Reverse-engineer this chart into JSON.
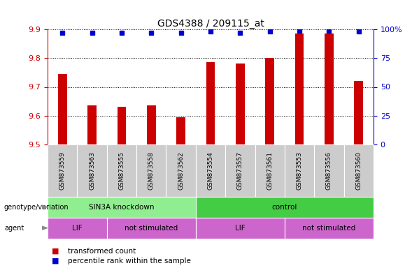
{
  "title": "GDS4388 / 209115_at",
  "samples": [
    "GSM873559",
    "GSM873563",
    "GSM873555",
    "GSM873558",
    "GSM873562",
    "GSM873554",
    "GSM873557",
    "GSM873561",
    "GSM873553",
    "GSM873556",
    "GSM873560"
  ],
  "bar_values": [
    9.745,
    9.635,
    9.63,
    9.635,
    9.595,
    9.785,
    9.78,
    9.8,
    9.885,
    9.885,
    9.72
  ],
  "percentile_values": [
    97,
    97,
    97,
    97,
    97,
    98,
    97,
    98,
    99,
    99,
    98
  ],
  "ylim": [
    9.5,
    9.9
  ],
  "y_ticks": [
    9.5,
    9.6,
    9.7,
    9.8,
    9.9
  ],
  "right_y_ticks": [
    0,
    25,
    50,
    75,
    100
  ],
  "right_y_tick_labels": [
    "0",
    "25",
    "50",
    "75",
    "100%"
  ],
  "bar_color": "#cc0000",
  "dot_color": "#0000cc",
  "bar_bottom": 9.5,
  "genotype_groups": [
    {
      "label": "SIN3A knockdown",
      "start": 0,
      "end": 5,
      "color": "#90ee90"
    },
    {
      "label": "control",
      "start": 5,
      "end": 11,
      "color": "#44cc44"
    }
  ],
  "agent_groups": [
    {
      "label": "LIF",
      "start": 0,
      "end": 2,
      "color": "#cc66cc"
    },
    {
      "label": "not stimulated",
      "start": 2,
      "end": 5,
      "color": "#cc66cc"
    },
    {
      "label": "LIF",
      "start": 5,
      "end": 8,
      "color": "#cc66cc"
    },
    {
      "label": "not stimulated",
      "start": 8,
      "end": 11,
      "color": "#cc66cc"
    }
  ],
  "legend_items": [
    {
      "label": "transformed count",
      "color": "#cc0000"
    },
    {
      "label": "percentile rank within the sample",
      "color": "#0000cc"
    }
  ],
  "left_axis_color": "#cc0000",
  "right_axis_color": "#0000cc",
  "sample_label_bg": "#cccccc",
  "row_label_color": "#555555"
}
